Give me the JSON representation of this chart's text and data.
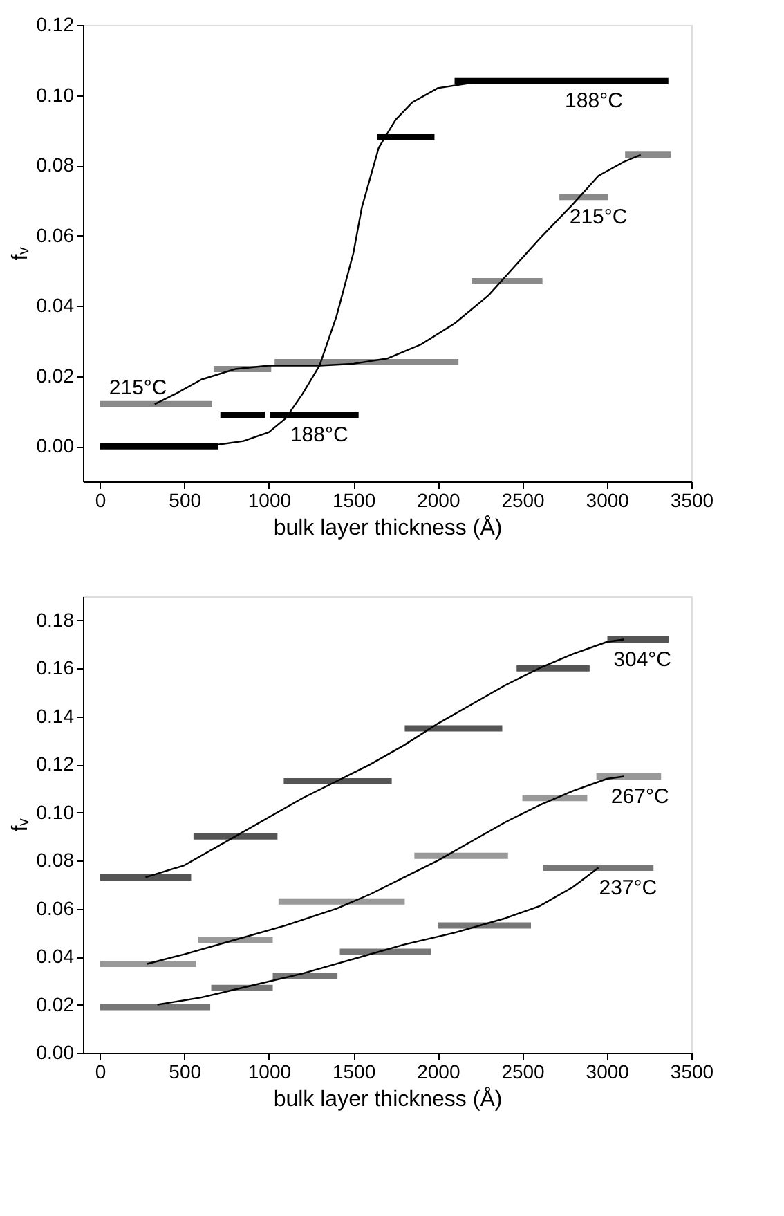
{
  "chart_data": [
    {
      "type": "line",
      "xlabel": "bulk layer thickness (Å)",
      "ylabel": "fᵥ",
      "xlim": [
        -100,
        3500
      ],
      "ylim": [
        -0.01,
        0.12
      ],
      "xticks": [
        0,
        500,
        1000,
        1500,
        2000,
        2500,
        3000,
        3500
      ],
      "yticks": [
        {
          "value": 0,
          "label": "0.00"
        },
        {
          "value": 0.02,
          "label": "0.02"
        },
        {
          "value": 0.04,
          "label": "0.04"
        },
        {
          "value": 0.06,
          "label": "0.06"
        },
        {
          "value": 0.08,
          "label": "0.08"
        },
        {
          "value": 0.1,
          "label": "0.10"
        },
        {
          "value": 0.12,
          "label": "0.12"
        }
      ],
      "grid": false,
      "legend": false,
      "marker": "none",
      "line_style": "solid",
      "series": [
        {
          "color": "#000000",
          "x": [
            0,
            700
          ],
          "values": [
            0,
            0
          ]
        },
        {
          "color": "#000000",
          "x": [
            713,
            977
          ],
          "values": [
            0.009,
            0.009
          ]
        },
        {
          "color": "#000000",
          "x": [
            1006,
            1531
          ],
          "values": [
            0.009,
            0.009
          ]
        },
        {
          "color": "#000000",
          "x": [
            1639,
            1980
          ],
          "values": [
            0.088,
            0.088
          ]
        },
        {
          "color": "#000000",
          "x": [
            2099,
            3364
          ],
          "values": [
            0.104,
            0.104
          ]
        },
        {
          "color": "#8a8a8a",
          "x": [
            0,
            665
          ],
          "values": [
            0.012,
            0.012
          ]
        },
        {
          "color": "#8a8a8a",
          "x": [
            673,
            1014
          ],
          "values": [
            0.022,
            0.022
          ]
        },
        {
          "color": "#8a8a8a",
          "x": [
            1034,
            2122
          ],
          "values": [
            0.024,
            0.024
          ]
        },
        {
          "color": "#8a8a8a",
          "x": [
            2199,
            2619
          ],
          "values": [
            0.047,
            0.047
          ]
        },
        {
          "color": "#8a8a8a",
          "x": [
            2719,
            3009
          ],
          "values": [
            0.071,
            0.071
          ]
        },
        {
          "color": "#8a8a8a",
          "x": [
            3108,
            3378
          ],
          "values": [
            0.083,
            0.083
          ]
        },
        {
          "color": "#000000",
          "x": [
            700,
            850,
            1000,
            1100,
            1200,
            1300,
            1400,
            1500,
            1550,
            1650,
            1750,
            1850,
            2000,
            2200,
            2500,
            3350
          ],
          "values": [
            0.0005,
            0.0015,
            0.004,
            0.008,
            0.015,
            0.023,
            0.037,
            0.055,
            0.068,
            0.085,
            0.093,
            0.098,
            0.102,
            0.1035,
            0.104,
            0.104
          ]
        },
        {
          "color": "#000000",
          "x": [
            324,
            450,
            600,
            800,
            1000,
            1300,
            1500,
            1700,
            1900,
            2100,
            2300,
            2450,
            2600,
            2800,
            2950,
            3100,
            3200
          ],
          "values": [
            0.012,
            0.015,
            0.019,
            0.022,
            0.023,
            0.023,
            0.0235,
            0.025,
            0.029,
            0.035,
            0.043,
            0.051,
            0.059,
            0.069,
            0.077,
            0.081,
            0.083
          ]
        }
      ],
      "annotations": [
        {
          "text": "188°C",
          "x": 2923,
          "y": 0.104
        },
        {
          "text": "215°C",
          "x": 2950,
          "y": 0.071
        },
        {
          "text": "215°C",
          "x": 324,
          "y": 0.012
        },
        {
          "text": "188°C",
          "x": 1298,
          "y": 0.009
        }
      ]
    },
    {
      "type": "line",
      "xlabel": "bulk layer thickness (Å)",
      "ylabel": "fᵥ",
      "xlim": [
        -100,
        3500
      ],
      "ylim": [
        0,
        0.19
      ],
      "xticks": [
        0,
        500,
        1000,
        1500,
        2000,
        2500,
        3000,
        3500
      ],
      "yticks": [
        {
          "value": 0,
          "label": "0.00"
        },
        {
          "value": 0.02,
          "label": "0.02"
        },
        {
          "value": 0.04,
          "label": "0.04"
        },
        {
          "value": 0.06,
          "label": "0.06"
        },
        {
          "value": 0.08,
          "label": "0.08"
        },
        {
          "value": 0.1,
          "label": "0.10"
        },
        {
          "value": 0.12,
          "label": "0.12"
        },
        {
          "value": 0.14,
          "label": "0.14"
        },
        {
          "value": 0.16,
          "label": "0.16"
        },
        {
          "value": 0.18,
          "label": "0.18"
        }
      ],
      "grid": false,
      "legend": false,
      "marker": "none",
      "line_style": "solid",
      "series": [
        {
          "color": "#555555",
          "x": [
            0,
            540
          ],
          "values": [
            0.073,
            0.073
          ]
        },
        {
          "color": "#555555",
          "x": [
            554,
            1051
          ],
          "values": [
            0.09,
            0.09
          ]
        },
        {
          "color": "#555555",
          "x": [
            1088,
            1727
          ],
          "values": [
            0.113,
            0.113
          ]
        },
        {
          "color": "#555555",
          "x": [
            1804,
            2381
          ],
          "values": [
            0.135,
            0.135
          ]
        },
        {
          "color": "#555555",
          "x": [
            2466,
            2898
          ],
          "values": [
            0.16,
            0.16
          ]
        },
        {
          "color": "#555555",
          "x": [
            3003,
            3366
          ],
          "values": [
            0.172,
            0.172
          ]
        },
        {
          "color": "#999999",
          "x": [
            0,
            568
          ],
          "values": [
            0.037,
            0.037
          ]
        },
        {
          "color": "#999999",
          "x": [
            582,
            1023
          ],
          "values": [
            0.047,
            0.047
          ]
        },
        {
          "color": "#999999",
          "x": [
            1057,
            1804
          ],
          "values": [
            0.063,
            0.063
          ]
        },
        {
          "color": "#999999",
          "x": [
            1861,
            2415
          ],
          "values": [
            0.082,
            0.082
          ]
        },
        {
          "color": "#999999",
          "x": [
            2500,
            2884
          ],
          "values": [
            0.106,
            0.106
          ]
        },
        {
          "color": "#999999",
          "x": [
            2938,
            3321
          ],
          "values": [
            0.115,
            0.115
          ]
        },
        {
          "color": "#777777",
          "x": [
            0,
            653
          ],
          "values": [
            0.019,
            0.019
          ]
        },
        {
          "color": "#777777",
          "x": [
            659,
            1023
          ],
          "values": [
            0.027,
            0.027
          ]
        },
        {
          "color": "#777777",
          "x": [
            1023,
            1406
          ],
          "values": [
            0.032,
            0.032
          ]
        },
        {
          "color": "#777777",
          "x": [
            1420,
            1960
          ],
          "values": [
            0.042,
            0.042
          ]
        },
        {
          "color": "#777777",
          "x": [
            2003,
            2551
          ],
          "values": [
            0.053,
            0.053
          ]
        },
        {
          "color": "#777777",
          "x": [
            2622,
            3276
          ],
          "values": [
            0.077,
            0.077
          ]
        },
        {
          "color": "#000000",
          "x": [
            270,
            500,
            800,
            1000,
            1200,
            1400,
            1600,
            1800,
            2000,
            2200,
            2400,
            2600,
            2800,
            3000,
            3100
          ],
          "values": [
            0.073,
            0.078,
            0.09,
            0.098,
            0.106,
            0.113,
            0.12,
            0.128,
            0.137,
            0.145,
            0.153,
            0.16,
            0.166,
            0.171,
            0.172
          ]
        },
        {
          "color": "#000000",
          "x": [
            280,
            500,
            800,
            1100,
            1400,
            1600,
            1800,
            2000,
            2200,
            2400,
            2600,
            2800,
            3000,
            3100
          ],
          "values": [
            0.037,
            0.041,
            0.047,
            0.053,
            0.06,
            0.066,
            0.073,
            0.08,
            0.088,
            0.096,
            0.103,
            0.109,
            0.114,
            0.115
          ]
        },
        {
          "color": "#000000",
          "x": [
            340,
            600,
            900,
            1200,
            1500,
            1800,
            2100,
            2400,
            2600,
            2800,
            2950
          ],
          "values": [
            0.02,
            0.023,
            0.028,
            0.033,
            0.039,
            0.045,
            0.05,
            0.056,
            0.061,
            0.069,
            0.077
          ]
        }
      ],
      "annotations": [
        {
          "text": "304°C",
          "x": 3210,
          "y": 0.172
        },
        {
          "text": "267°C",
          "x": 3196,
          "y": 0.115
        },
        {
          "text": "237°C",
          "x": 3125,
          "y": 0.077
        }
      ]
    }
  ]
}
